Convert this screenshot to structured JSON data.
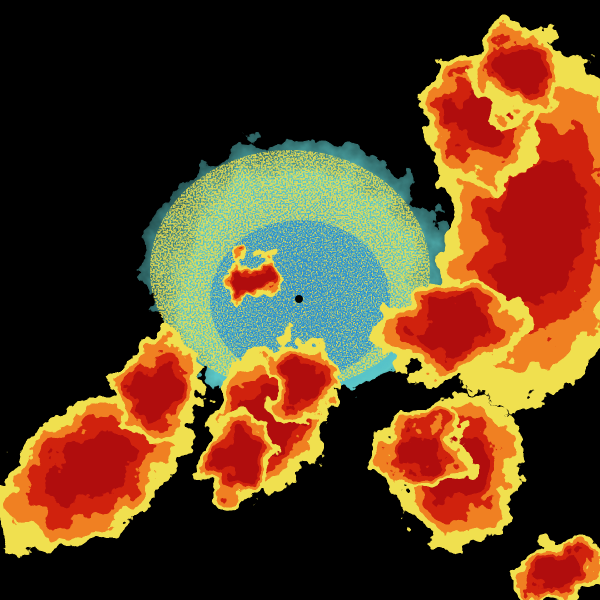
{
  "radar": {
    "type": "reflectivity-sweep",
    "colors": {
      "background": "#000000",
      "light": "#2a8fd0",
      "cyan": "#5cc8c8",
      "yellow": "#f0e050",
      "orange": "#f08020",
      "red": "#d02010",
      "dark_red": "#b00808"
    },
    "site_marker": "radar-site-dot"
  }
}
